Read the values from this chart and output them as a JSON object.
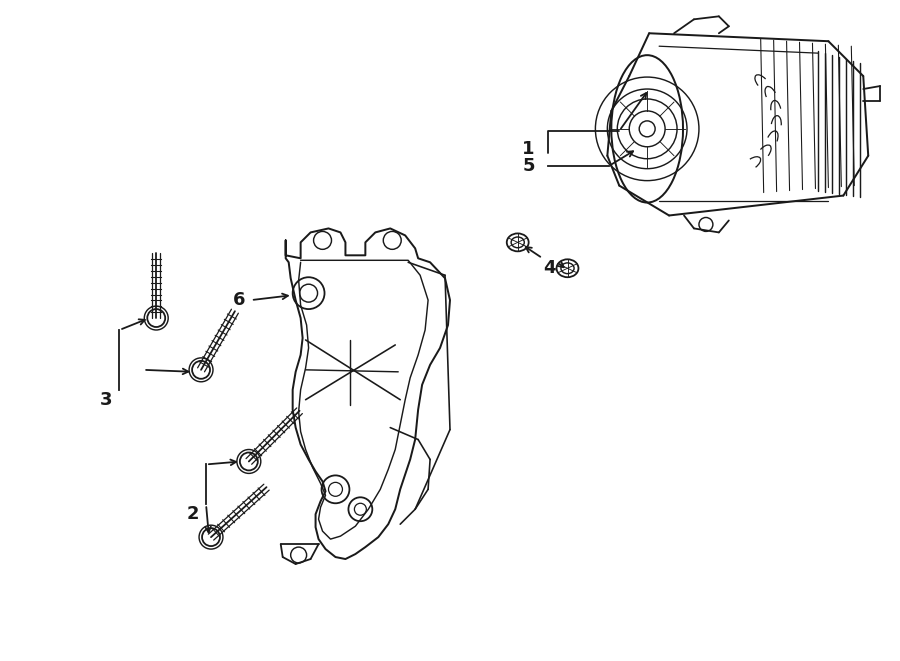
{
  "bg_color": "#ffffff",
  "line_color": "#1a1a1a",
  "lw": 1.3,
  "label_fontsize": 13,
  "figsize": [
    9.0,
    6.61
  ]
}
